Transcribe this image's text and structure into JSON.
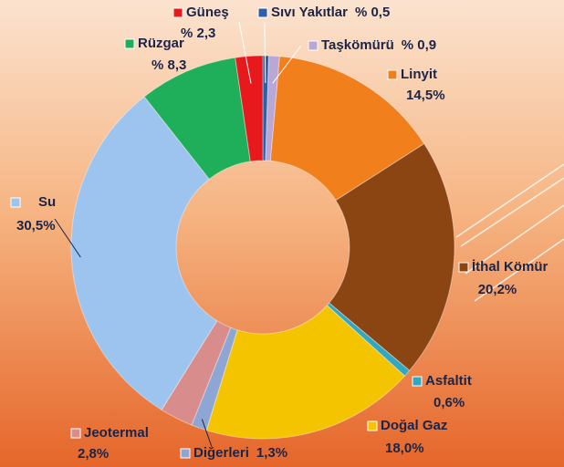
{
  "chart_data": {
    "type": "donut",
    "categories": [
      "Sıvı Yakıtlar",
      "Taşkömürü",
      "Linyit",
      "İthal Kömür",
      "Asfaltit",
      "Doğal Gaz",
      "Diğerleri",
      "Jeotermal",
      "Su",
      "Rüzgar",
      "Güneş"
    ],
    "values": [
      0.5,
      0.9,
      14.5,
      20.2,
      0.6,
      18.0,
      1.3,
      2.8,
      30.5,
      8.3,
      2.3
    ],
    "value_labels": [
      "% 0,5",
      "% 0,9",
      "14,5%",
      "20,2%",
      "0,6%",
      "18,0%",
      "1,3%",
      "2,8%",
      "30,5%",
      "% 8,3",
      "% 2,3"
    ],
    "colors": [
      "#2e5fa8",
      "#b9a7d6",
      "#f07f1c",
      "#8b4513",
      "#31a8c0",
      "#f5c400",
      "#8ea6d4",
      "#d98c8c",
      "#9dc3ef",
      "#1fae5a",
      "#e8191c"
    ]
  }
}
